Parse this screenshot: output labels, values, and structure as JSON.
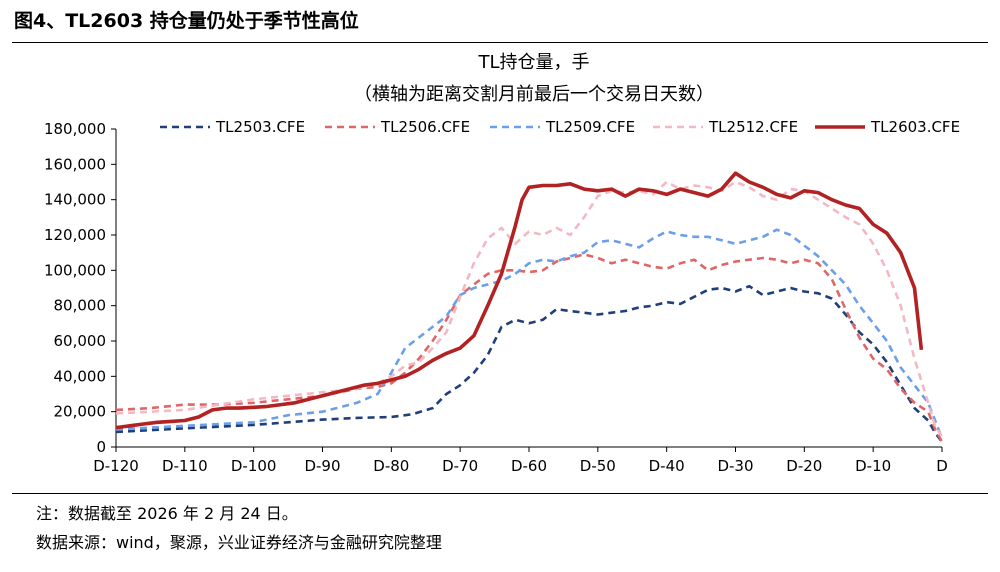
{
  "figure_title": "图4、TL2603 持仓量仍处于季节性高位",
  "notes": {
    "note1": "注：数据截至 2026 年 2 月 24 日。",
    "note2": "数据来源：wind，聚源，兴业证券经济与金融研究院整理"
  },
  "colors": {
    "TL2503.CFE": "#1f3f7a",
    "TL2506.CFE": "#e06666",
    "TL2509.CFE": "#6d9eeb",
    "TL2512.CFE": "#f4b8c4",
    "TL2603.CFE": "#b22222"
  },
  "chart_data": {
    "type": "line",
    "title": "TL持仓量，手",
    "subtitle": "（横轴为距离交割月前最后一个交易日天数）",
    "ylim": [
      0,
      180000
    ],
    "yticks": [
      "0",
      "20,000",
      "40,000",
      "60,000",
      "80,000",
      "100,000",
      "120,000",
      "140,000",
      "160,000",
      "180,000"
    ],
    "xlim": [
      -120,
      0
    ],
    "xticks": [
      "D-120",
      "D-110",
      "D-100",
      "D-90",
      "D-80",
      "D-70",
      "D-60",
      "D-50",
      "D-40",
      "D-30",
      "D-20",
      "D-10",
      "D"
    ],
    "legend_position": "top",
    "series": [
      {
        "name": "TL2503.CFE",
        "style": "dashed",
        "points": [
          [
            -120,
            8500
          ],
          [
            -110,
            10500
          ],
          [
            -100,
            12500
          ],
          [
            -95,
            14000
          ],
          [
            -90,
            15500
          ],
          [
            -85,
            16500
          ],
          [
            -80,
            17000
          ],
          [
            -77,
            18500
          ],
          [
            -74,
            22000
          ],
          [
            -72,
            30000
          ],
          [
            -70,
            35000
          ],
          [
            -68,
            42000
          ],
          [
            -66,
            52000
          ],
          [
            -64,
            68000
          ],
          [
            -62,
            72000
          ],
          [
            -60,
            70000
          ],
          [
            -58,
            72000
          ],
          [
            -56,
            78000
          ],
          [
            -54,
            77000
          ],
          [
            -52,
            76000
          ],
          [
            -50,
            75000
          ],
          [
            -48,
            76000
          ],
          [
            -46,
            77000
          ],
          [
            -44,
            79000
          ],
          [
            -42,
            80000
          ],
          [
            -40,
            82000
          ],
          [
            -38,
            81000
          ],
          [
            -36,
            85000
          ],
          [
            -34,
            89000
          ],
          [
            -32,
            90000
          ],
          [
            -30,
            88000
          ],
          [
            -28,
            91000
          ],
          [
            -26,
            86000
          ],
          [
            -24,
            88000
          ],
          [
            -22,
            90000
          ],
          [
            -20,
            88000
          ],
          [
            -18,
            87000
          ],
          [
            -16,
            84000
          ],
          [
            -14,
            75000
          ],
          [
            -12,
            65000
          ],
          [
            -10,
            58000
          ],
          [
            -8,
            48000
          ],
          [
            -6,
            35000
          ],
          [
            -4,
            22000
          ],
          [
            -2,
            15000
          ],
          [
            -1,
            8000
          ],
          [
            0,
            3000
          ]
        ]
      },
      {
        "name": "TL2506.CFE",
        "style": "dashed",
        "points": [
          [
            -120,
            21000
          ],
          [
            -115,
            22000
          ],
          [
            -110,
            24000
          ],
          [
            -105,
            24000
          ],
          [
            -100,
            25000
          ],
          [
            -95,
            27000
          ],
          [
            -90,
            29000
          ],
          [
            -85,
            33000
          ],
          [
            -82,
            34000
          ],
          [
            -80,
            36000
          ],
          [
            -78,
            42000
          ],
          [
            -76,
            50000
          ],
          [
            -74,
            60000
          ],
          [
            -72,
            72000
          ],
          [
            -70,
            86000
          ],
          [
            -68,
            92000
          ],
          [
            -66,
            98000
          ],
          [
            -64,
            100000
          ],
          [
            -62,
            100000
          ],
          [
            -60,
            99000
          ],
          [
            -58,
            100000
          ],
          [
            -56,
            105000
          ],
          [
            -54,
            107000
          ],
          [
            -52,
            109000
          ],
          [
            -50,
            107000
          ],
          [
            -48,
            104000
          ],
          [
            -46,
            106000
          ],
          [
            -44,
            104000
          ],
          [
            -42,
            102000
          ],
          [
            -40,
            101000
          ],
          [
            -38,
            104000
          ],
          [
            -36,
            106000
          ],
          [
            -34,
            100000
          ],
          [
            -32,
            103000
          ],
          [
            -30,
            105000
          ],
          [
            -28,
            106000
          ],
          [
            -26,
            107000
          ],
          [
            -24,
            106000
          ],
          [
            -22,
            104000
          ],
          [
            -20,
            106000
          ],
          [
            -18,
            104000
          ],
          [
            -16,
            95000
          ],
          [
            -14,
            78000
          ],
          [
            -12,
            62000
          ],
          [
            -10,
            50000
          ],
          [
            -8,
            44000
          ],
          [
            -6,
            33000
          ],
          [
            -4,
            25000
          ],
          [
            -2,
            20000
          ],
          [
            -1,
            10000
          ],
          [
            0,
            3000
          ]
        ]
      },
      {
        "name": "TL2509.CFE",
        "style": "dashed",
        "points": [
          [
            -120,
            10000
          ],
          [
            -115,
            11000
          ],
          [
            -110,
            12000
          ],
          [
            -105,
            13000
          ],
          [
            -100,
            14000
          ],
          [
            -95,
            18000
          ],
          [
            -90,
            20000
          ],
          [
            -85,
            25000
          ],
          [
            -82,
            30000
          ],
          [
            -80,
            42000
          ],
          [
            -78,
            56000
          ],
          [
            -76,
            62000
          ],
          [
            -74,
            68000
          ],
          [
            -72,
            74000
          ],
          [
            -70,
            86000
          ],
          [
            -68,
            90000
          ],
          [
            -66,
            92000
          ],
          [
            -64,
            94000
          ],
          [
            -62,
            98000
          ],
          [
            -60,
            104000
          ],
          [
            -58,
            106000
          ],
          [
            -56,
            105000
          ],
          [
            -54,
            108000
          ],
          [
            -52,
            110000
          ],
          [
            -50,
            116000
          ],
          [
            -48,
            117000
          ],
          [
            -46,
            115000
          ],
          [
            -44,
            113000
          ],
          [
            -42,
            118000
          ],
          [
            -40,
            122000
          ],
          [
            -38,
            120000
          ],
          [
            -36,
            119000
          ],
          [
            -34,
            119000
          ],
          [
            -32,
            117000
          ],
          [
            -30,
            115000
          ],
          [
            -28,
            117000
          ],
          [
            -26,
            119000
          ],
          [
            -24,
            123000
          ],
          [
            -22,
            120000
          ],
          [
            -20,
            114000
          ],
          [
            -18,
            108000
          ],
          [
            -16,
            100000
          ],
          [
            -14,
            92000
          ],
          [
            -12,
            80000
          ],
          [
            -10,
            70000
          ],
          [
            -8,
            60000
          ],
          [
            -6,
            45000
          ],
          [
            -4,
            35000
          ],
          [
            -2,
            25000
          ],
          [
            -1,
            15000
          ],
          [
            0,
            5000
          ]
        ]
      },
      {
        "name": "TL2512.CFE",
        "style": "dashed",
        "points": [
          [
            -120,
            19000
          ],
          [
            -115,
            20000
          ],
          [
            -110,
            21000
          ],
          [
            -105,
            24000
          ],
          [
            -100,
            27000
          ],
          [
            -95,
            29000
          ],
          [
            -90,
            31000
          ],
          [
            -85,
            33000
          ],
          [
            -82,
            36000
          ],
          [
            -80,
            40000
          ],
          [
            -78,
            46000
          ],
          [
            -76,
            48000
          ],
          [
            -74,
            56000
          ],
          [
            -72,
            65000
          ],
          [
            -70,
            85000
          ],
          [
            -68,
            104000
          ],
          [
            -66,
            118000
          ],
          [
            -64,
            124000
          ],
          [
            -62,
            115000
          ],
          [
            -60,
            122000
          ],
          [
            -58,
            120000
          ],
          [
            -56,
            124000
          ],
          [
            -54,
            120000
          ],
          [
            -52,
            130000
          ],
          [
            -50,
            142000
          ],
          [
            -48,
            145000
          ],
          [
            -46,
            144000
          ],
          [
            -44,
            145000
          ],
          [
            -42,
            143000
          ],
          [
            -40,
            150000
          ],
          [
            -38,
            146000
          ],
          [
            -36,
            148000
          ],
          [
            -34,
            147000
          ],
          [
            -32,
            145000
          ],
          [
            -30,
            150000
          ],
          [
            -28,
            147000
          ],
          [
            -26,
            142000
          ],
          [
            -24,
            140000
          ],
          [
            -22,
            146000
          ],
          [
            -20,
            145000
          ],
          [
            -18,
            140000
          ],
          [
            -16,
            135000
          ],
          [
            -14,
            130000
          ],
          [
            -12,
            126000
          ],
          [
            -10,
            115000
          ],
          [
            -8,
            100000
          ],
          [
            -6,
            80000
          ],
          [
            -4,
            50000
          ],
          [
            -2,
            25000
          ],
          [
            -1,
            12000
          ],
          [
            0,
            6000
          ]
        ]
      },
      {
        "name": "TL2603.CFE",
        "style": "solid",
        "points": [
          [
            -120,
            11000
          ],
          [
            -118,
            12000
          ],
          [
            -116,
            13000
          ],
          [
            -114,
            14000
          ],
          [
            -112,
            14500
          ],
          [
            -110,
            15000
          ],
          [
            -108,
            17000
          ],
          [
            -106,
            21000
          ],
          [
            -104,
            22000
          ],
          [
            -102,
            22000
          ],
          [
            -100,
            22500
          ],
          [
            -98,
            23000
          ],
          [
            -96,
            24000
          ],
          [
            -94,
            25000
          ],
          [
            -92,
            27000
          ],
          [
            -90,
            29000
          ],
          [
            -88,
            31000
          ],
          [
            -86,
            33000
          ],
          [
            -84,
            35000
          ],
          [
            -82,
            36000
          ],
          [
            -80,
            38000
          ],
          [
            -78,
            40000
          ],
          [
            -76,
            44000
          ],
          [
            -74,
            49000
          ],
          [
            -72,
            53000
          ],
          [
            -70,
            56000
          ],
          [
            -68,
            63000
          ],
          [
            -66,
            80000
          ],
          [
            -64,
            98000
          ],
          [
            -62,
            125000
          ],
          [
            -61,
            140000
          ],
          [
            -60,
            147000
          ],
          [
            -58,
            148000
          ],
          [
            -56,
            148000
          ],
          [
            -54,
            149000
          ],
          [
            -52,
            146000
          ],
          [
            -50,
            145000
          ],
          [
            -48,
            146000
          ],
          [
            -46,
            142000
          ],
          [
            -44,
            146000
          ],
          [
            -42,
            145000
          ],
          [
            -40,
            143000
          ],
          [
            -38,
            146000
          ],
          [
            -36,
            144000
          ],
          [
            -34,
            142000
          ],
          [
            -32,
            146000
          ],
          [
            -30,
            155000
          ],
          [
            -28,
            150000
          ],
          [
            -26,
            147000
          ],
          [
            -24,
            143000
          ],
          [
            -22,
            141000
          ],
          [
            -20,
            145000
          ],
          [
            -18,
            144000
          ],
          [
            -16,
            140000
          ],
          [
            -14,
            137000
          ],
          [
            -12,
            135000
          ],
          [
            -10,
            126000
          ],
          [
            -8,
            121000
          ],
          [
            -6,
            110000
          ],
          [
            -4,
            90000
          ],
          [
            -3,
            55000
          ]
        ]
      }
    ]
  }
}
